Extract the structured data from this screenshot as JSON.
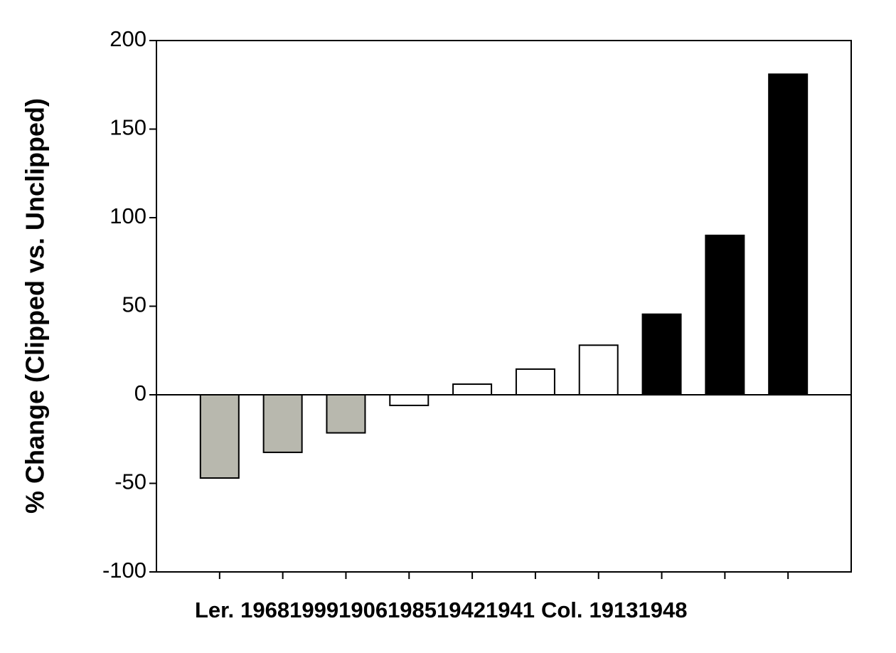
{
  "chart_data": {
    "type": "bar",
    "y_label": "% Change (Clipped vs. Unclipped)",
    "categories": [
      "Ler.",
      "1968",
      "1999",
      "1906",
      "1985",
      "1942",
      "1941",
      "Col.",
      "1913",
      "1948"
    ],
    "values": [
      -47,
      -32.5,
      -21.5,
      -6,
      6,
      14.5,
      28,
      45.5,
      90,
      181
    ],
    "colors": [
      "#b8b8ae",
      "#b8b8ae",
      "#b8b8ae",
      "#ffffff",
      "#ffffff",
      "#ffffff",
      "#ffffff",
      "#000000",
      "#000000",
      "#000000"
    ],
    "ylim": [
      -100,
      200
    ],
    "yticks": [
      -100,
      -50,
      0,
      50,
      100,
      150,
      200
    ]
  }
}
